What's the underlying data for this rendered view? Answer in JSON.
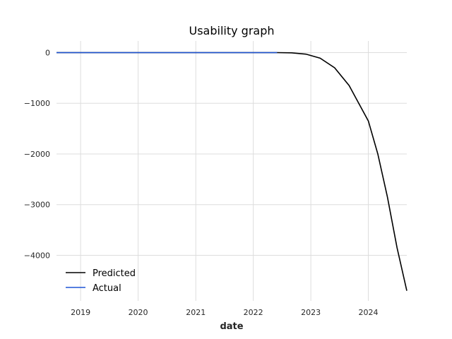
{
  "chart_data": {
    "type": "line",
    "title": "Usability graph",
    "xlabel": "date",
    "ylabel": "",
    "x_axis_type": "date",
    "xlim": [
      "2018-08-01",
      "2024-09-01"
    ],
    "ylim": [
      -4900,
      230
    ],
    "x_ticks": [
      {
        "date": "2019-01-01",
        "label": "2019"
      },
      {
        "date": "2020-01-01",
        "label": "2020"
      },
      {
        "date": "2021-01-01",
        "label": "2021"
      },
      {
        "date": "2022-01-01",
        "label": "2022"
      },
      {
        "date": "2023-01-01",
        "label": "2023"
      },
      {
        "date": "2024-01-01",
        "label": "2024"
      }
    ],
    "y_ticks": [
      {
        "value": 0,
        "label": "0"
      },
      {
        "value": -1000,
        "label": "−1000"
      },
      {
        "value": -2000,
        "label": "−2000"
      },
      {
        "value": -3000,
        "label": "−3000"
      },
      {
        "value": -4000,
        "label": "−4000"
      }
    ],
    "grid": true,
    "legend_position": "bottom-left",
    "series": [
      {
        "name": "Predicted",
        "color": "#000000",
        "points": [
          [
            "2018-08-01",
            0
          ],
          [
            "2019-01-01",
            0
          ],
          [
            "2020-01-01",
            0
          ],
          [
            "2021-01-01",
            0
          ],
          [
            "2022-01-01",
            0
          ],
          [
            "2022-06-01",
            0
          ],
          [
            "2022-09-01",
            -5
          ],
          [
            "2022-12-01",
            -30
          ],
          [
            "2023-03-01",
            -110
          ],
          [
            "2023-06-01",
            -300
          ],
          [
            "2023-09-01",
            -650
          ],
          [
            "2024-01-01",
            -1350
          ],
          [
            "2024-03-01",
            -2000
          ],
          [
            "2024-05-01",
            -2850
          ],
          [
            "2024-07-01",
            -3850
          ],
          [
            "2024-09-01",
            -4700
          ]
        ]
      },
      {
        "name": "Actual",
        "color": "#1f55d6",
        "points": [
          [
            "2018-08-01",
            0
          ],
          [
            "2019-01-01",
            0
          ],
          [
            "2020-01-01",
            0
          ],
          [
            "2021-01-01",
            0
          ],
          [
            "2022-01-01",
            0
          ],
          [
            "2022-06-01",
            0
          ]
        ]
      }
    ]
  }
}
